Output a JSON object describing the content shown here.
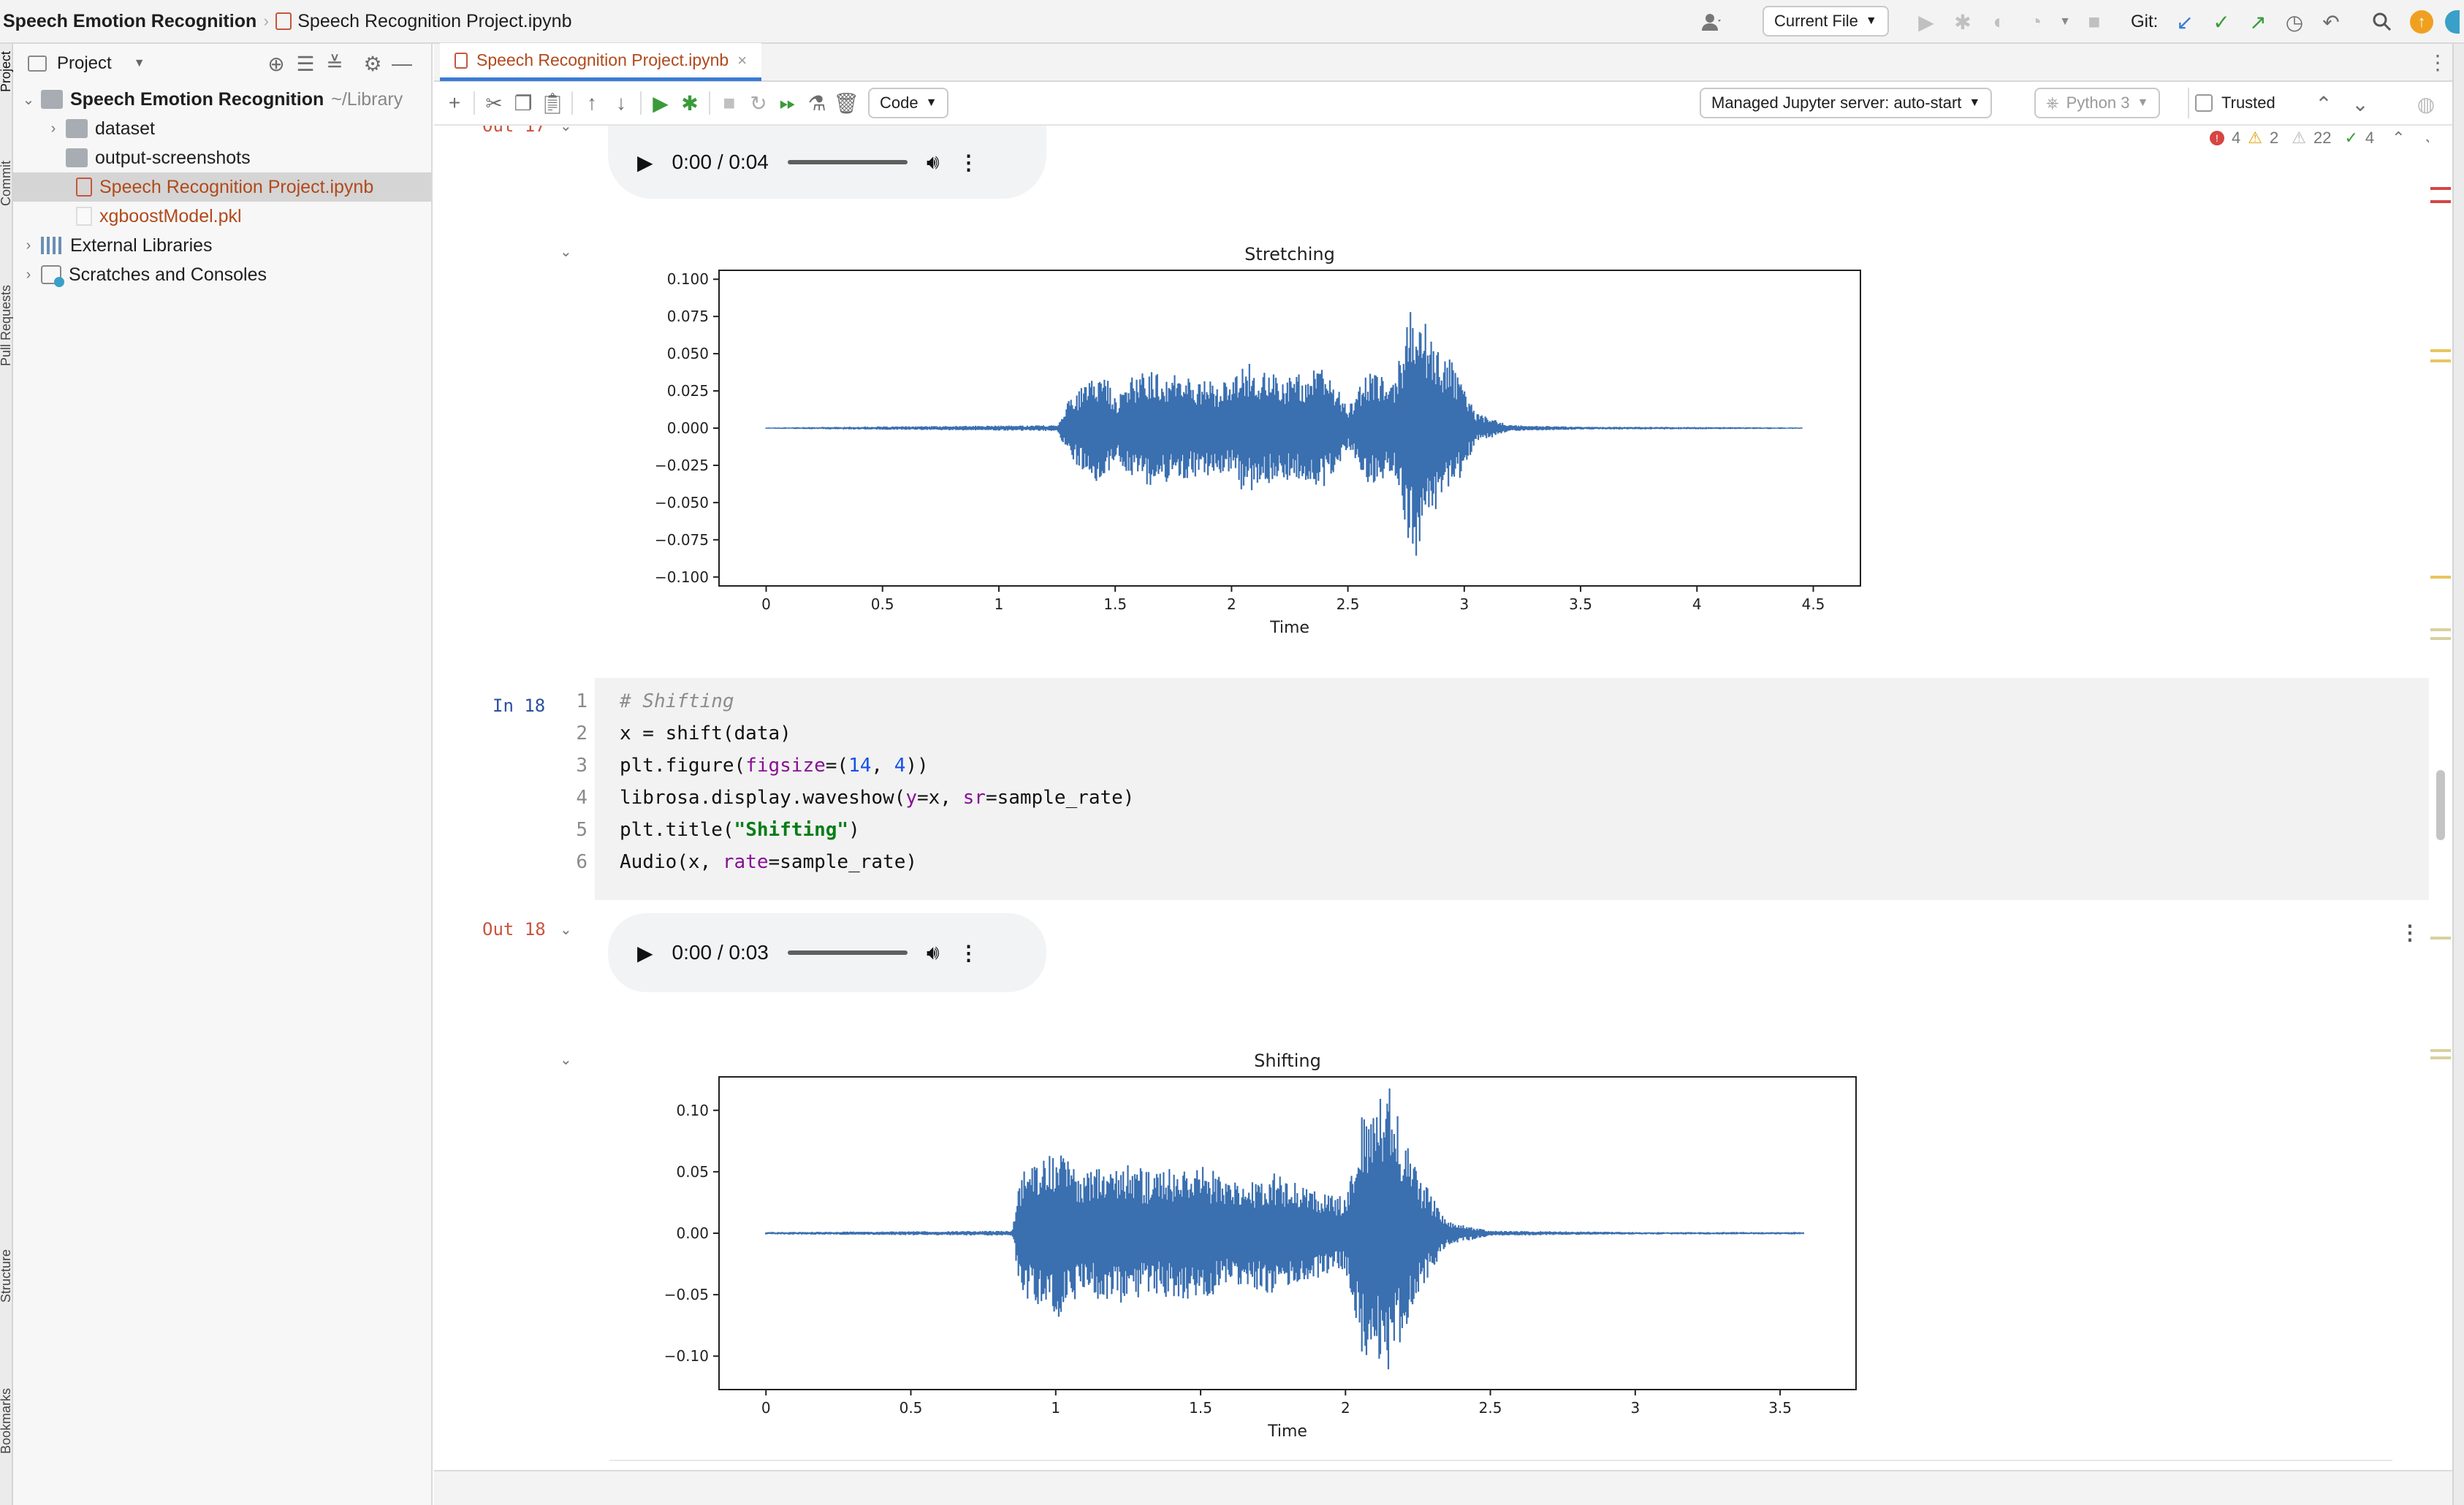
{
  "topbar": {
    "project_name": "Speech Emotion Recognition",
    "file_name": "Speech Recognition Project.ipynb",
    "run_config": "Current File",
    "git_label": "Git:"
  },
  "left_stripe": {
    "project": "Project",
    "commit": "Commit",
    "pull_requests": "Pull Requests",
    "structure": "Structure",
    "bookmarks": "Bookmarks"
  },
  "project_panel": {
    "title": "Project",
    "root": {
      "name": "Speech Emotion Recognition",
      "path": "~/Library"
    },
    "items": [
      {
        "label": "dataset",
        "type": "folder"
      },
      {
        "label": "output-screenshots",
        "type": "folder"
      },
      {
        "label": "Speech Recognition Project.ipynb",
        "type": "notebook"
      },
      {
        "label": "xgboostModel.pkl",
        "type": "file"
      }
    ],
    "external_libraries": "External Libraries",
    "scratches": "Scratches and Consoles"
  },
  "editor": {
    "tab_label": "Speech Recognition Project.ipynb",
    "cell_type": "Code",
    "server": "Managed Jupyter server: auto-start",
    "kernel": "Python 3",
    "trusted": "Trusted",
    "inspections": {
      "errors": "4",
      "warnings": "2",
      "weak_warnings": "22",
      "ok": "4"
    }
  },
  "cells": {
    "prev_out_label": "Out 17",
    "audio1_time": "0:00 / 0:04",
    "in_label": "In 18",
    "code_lines": [
      {
        "n": "1",
        "html": "<span class=\"c-com\"># Shifting</span>"
      },
      {
        "n": "2",
        "html": "x = shift(data)"
      },
      {
        "n": "3",
        "html": "plt.figure(<span class=\"c-kw\">figsize</span>=(<span class=\"c-num\">14</span>, <span class=\"c-num\">4</span>))"
      },
      {
        "n": "4",
        "html": "librosa.display.waveshow(<span class=\"c-kw\">y</span>=x, <span class=\"c-kw\">sr</span>=sample_rate)"
      },
      {
        "n": "5",
        "html": "plt.title(<span class=\"c-str\">\"Shifting\"</span>)"
      },
      {
        "n": "6",
        "html": "Audio(x, <span class=\"c-kw\">rate</span>=sample_rate)"
      }
    ],
    "out_label": "Out 18",
    "audio2_time": "0:00 / 0:03"
  },
  "colors": {
    "waveform": "#3a6fb0",
    "accent": "#3a7bd5",
    "out_label": "#c8553d",
    "in_label": "#2b4f9e"
  },
  "chart_data": [
    {
      "type": "area",
      "title": "Stretching",
      "xlabel": "Time",
      "ylabel": "",
      "xlim": [
        0,
        4.5
      ],
      "ylim": [
        -0.1,
        0.1
      ],
      "xticks": [
        "0",
        "0.5",
        "1",
        "1.5",
        "2",
        "2.5",
        "3",
        "3.5",
        "4",
        "4.5"
      ],
      "yticks": [
        "0.100",
        "0.075",
        "0.050",
        "0.025",
        "0.000",
        "−0.025",
        "−0.050",
        "−0.075",
        "−0.100"
      ],
      "envelope": {
        "x": [
          0,
          1.25,
          1.3,
          1.45,
          1.5,
          1.6,
          1.8,
          2.0,
          2.05,
          2.2,
          2.4,
          2.5,
          2.6,
          2.7,
          2.75,
          2.8,
          2.85,
          2.95,
          3.05,
          3.2,
          3.5,
          4.0,
          4.45
        ],
        "y": [
          0.0005,
          0.002,
          0.02,
          0.04,
          0.02,
          0.04,
          0.035,
          0.03,
          0.045,
          0.035,
          0.04,
          0.015,
          0.04,
          0.03,
          0.07,
          0.095,
          0.06,
          0.045,
          0.01,
          0.002,
          0.001,
          0.0008,
          0.0005
        ]
      }
    },
    {
      "type": "area",
      "title": "Shifting",
      "xlabel": "Time",
      "ylabel": "",
      "xlim": [
        0,
        3.6
      ],
      "ylim": [
        -0.12,
        0.12
      ],
      "xticks": [
        "0",
        "0.5",
        "1",
        "1.5",
        "2",
        "2.5",
        "3",
        "3.5"
      ],
      "yticks": [
        "0.10",
        "0.05",
        "0.00",
        "−0.05",
        "−0.10"
      ],
      "envelope": {
        "x": [
          0,
          0.85,
          0.88,
          1.0,
          1.1,
          1.2,
          1.35,
          1.5,
          1.6,
          1.75,
          1.85,
          2.0,
          2.05,
          2.15,
          2.25,
          2.35,
          2.5,
          3.0,
          3.58
        ],
        "y": [
          0.001,
          0.002,
          0.05,
          0.07,
          0.05,
          0.06,
          0.05,
          0.06,
          0.04,
          0.05,
          0.04,
          0.03,
          0.1,
          0.12,
          0.05,
          0.01,
          0.002,
          0.001,
          0.001
        ]
      }
    }
  ]
}
